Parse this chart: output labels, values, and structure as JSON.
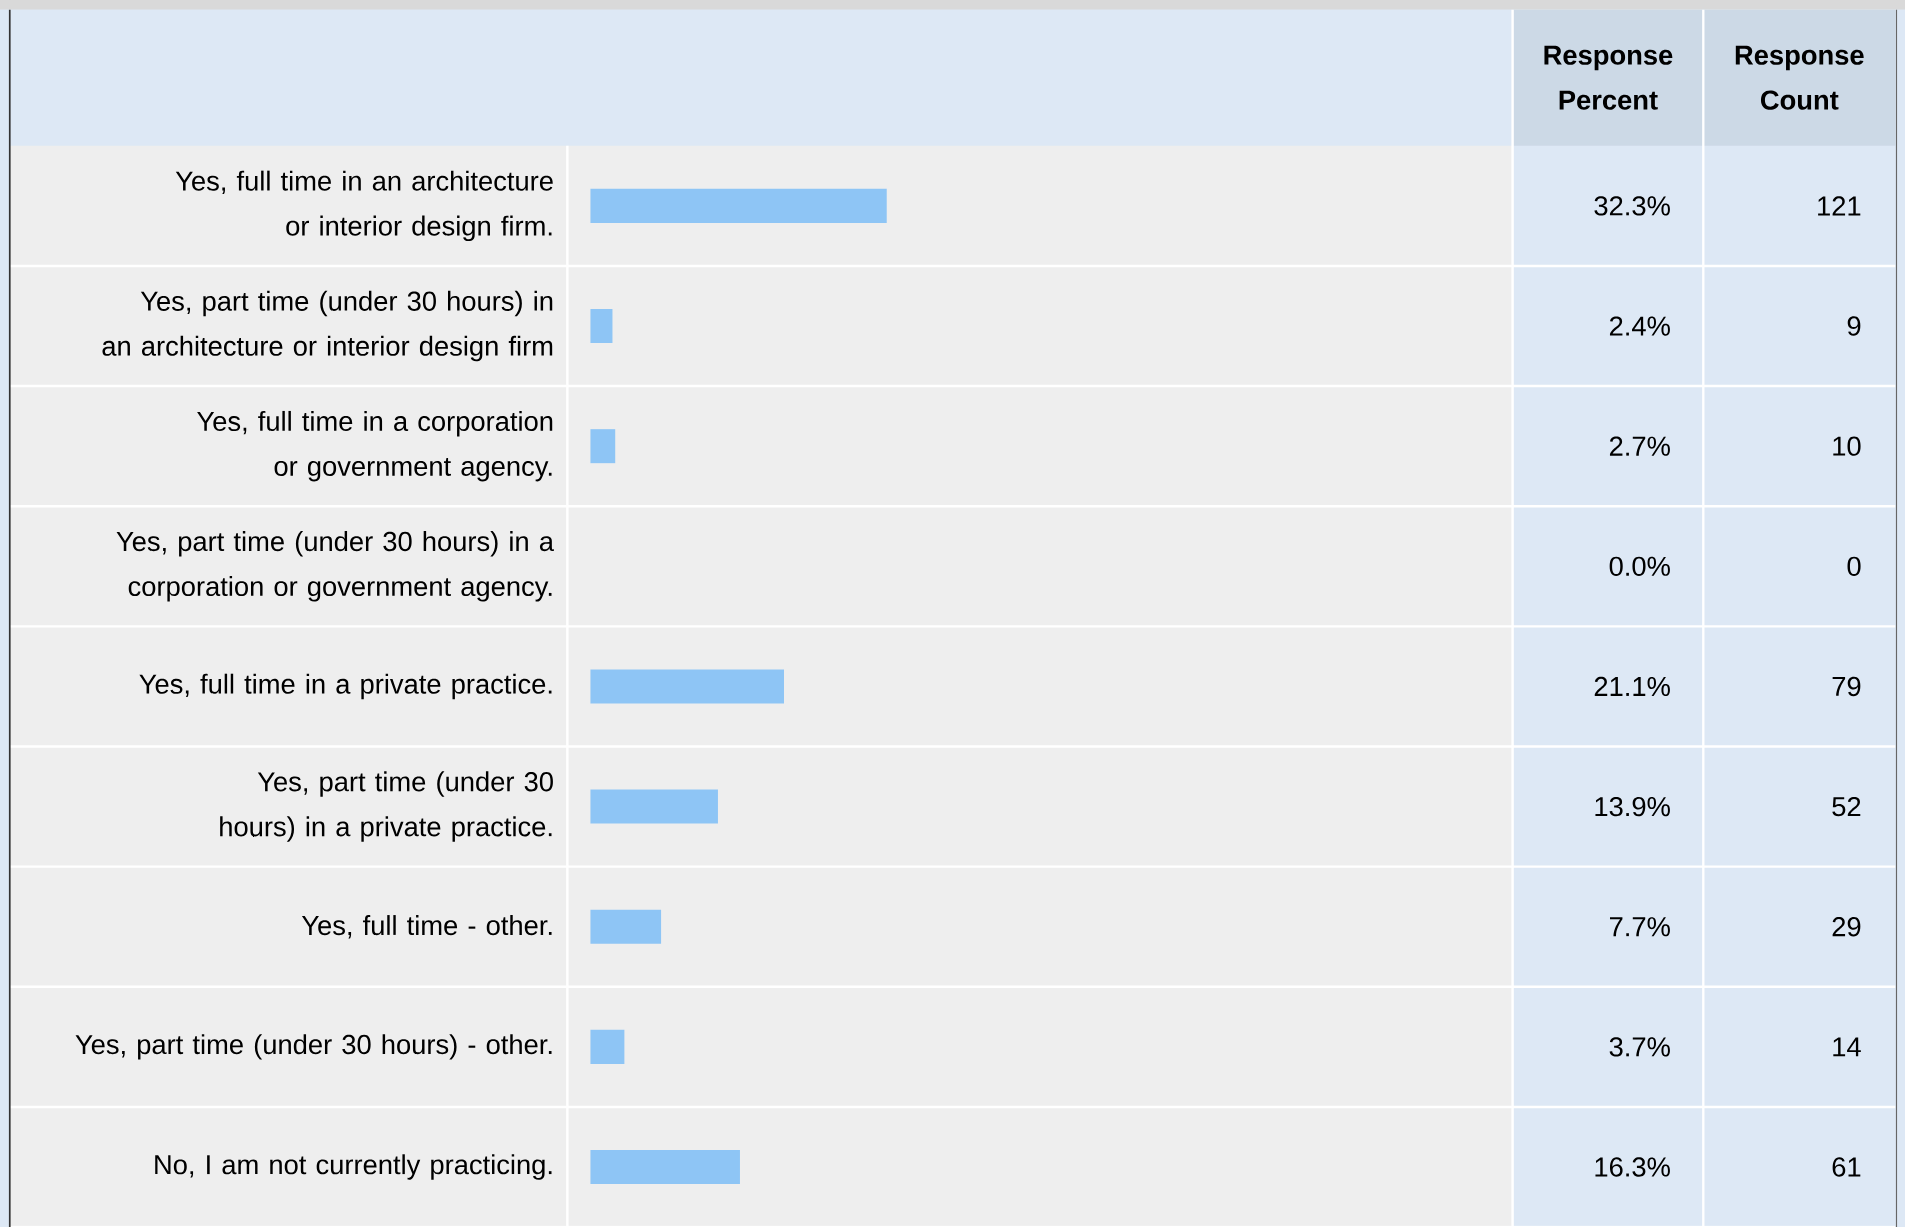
{
  "chart_data": {
    "type": "bar",
    "orientation": "horizontal",
    "categories": [
      "Yes, full time in an architecture or interior design firm.",
      "Yes, part time (under 30 hours) in an architecture or interior design firm",
      "Yes, full time in a corporation or government agency.",
      "Yes, part time (under 30 hours) in a corporation or government agency.",
      "Yes, full time in a private practice.",
      "Yes, part time (under 30 hours) in a private practice.",
      "Yes, full time - other.",
      "Yes, part time (under 30 hours) - other.",
      "No, I am not currently practicing."
    ],
    "values": [
      32.3,
      2.4,
      2.7,
      0.0,
      21.1,
      13.9,
      7.7,
      3.7,
      16.3
    ],
    "value_labels": [
      "32.3%",
      "2.4%",
      "2.7%",
      "0.0%",
      "21.1%",
      "13.9%",
      "7.7%",
      "3.7%",
      "16.3%"
    ],
    "color": "#8ec5f5",
    "xlim": [
      0,
      100
    ],
    "tick_labels": "y",
    "annotations": [
      "Response Percent",
      "Response Count",
      "121",
      "9",
      "10",
      "0",
      "79",
      "52",
      "29",
      "14",
      "61"
    ]
  }
}
